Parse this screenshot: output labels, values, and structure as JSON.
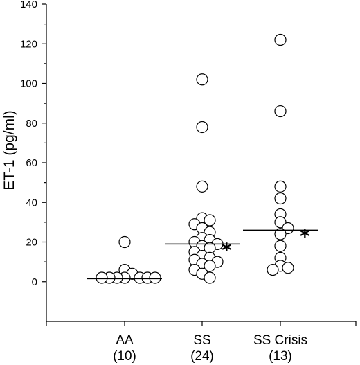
{
  "chart_data": {
    "type": "scatter",
    "ylabel": "ET-1 (pg/ml)",
    "xlabel": "",
    "ylim": [
      -20,
      140
    ],
    "yticks": [
      0,
      20,
      40,
      60,
      80,
      100,
      120,
      140
    ],
    "grid": false,
    "categories": [
      {
        "name": "AA",
        "n_label": "(10)",
        "median": 1.5,
        "star": "",
        "values": [
          20,
          6,
          4,
          2,
          2,
          2,
          2,
          2,
          2,
          2
        ]
      },
      {
        "name": "SS",
        "n_label": "(24)",
        "median": 19,
        "star": "*",
        "values": [
          102,
          78,
          48,
          32,
          31,
          29,
          27,
          25,
          22,
          21,
          20,
          19,
          18,
          17,
          15,
          13,
          12,
          11,
          10,
          9,
          8,
          6,
          4,
          2
        ]
      },
      {
        "name": "SS Crisis",
        "n_label": "(13)",
        "median": 26,
        "star": "*",
        "values": [
          122,
          86,
          48,
          42,
          34,
          30,
          27,
          24,
          18,
          12,
          8,
          7,
          6
        ]
      }
    ]
  }
}
